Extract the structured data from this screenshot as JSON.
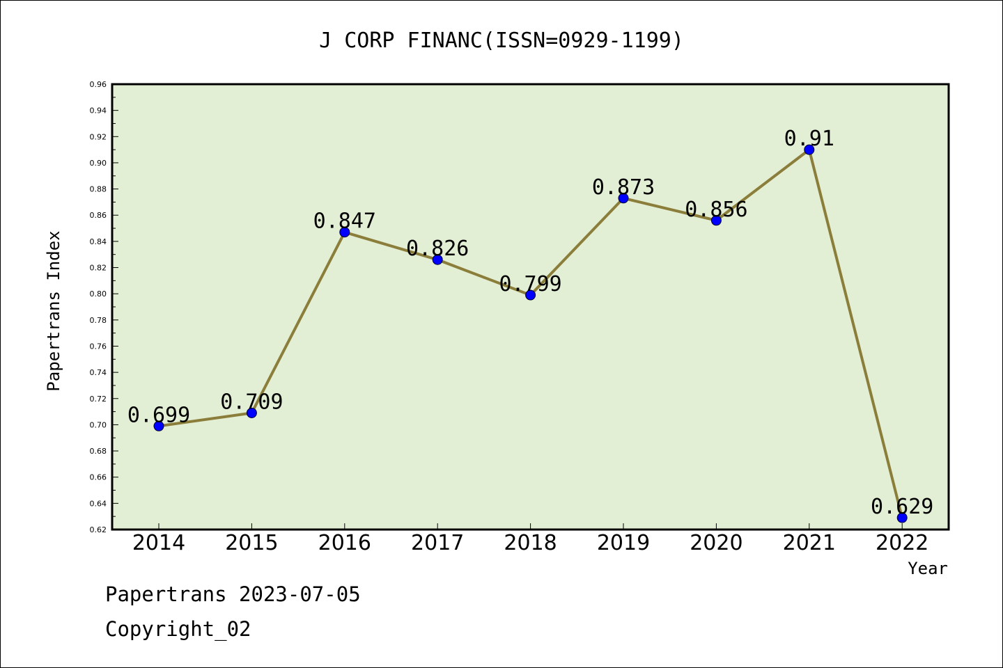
{
  "chart_data": {
    "type": "line",
    "title": "J CORP FINANC(ISSN=0929-1199)",
    "xlabel": "Year",
    "ylabel": "Papertrans Index",
    "categories": [
      "2014",
      "2015",
      "2016",
      "2017",
      "2018",
      "2019",
      "2020",
      "2021",
      "2022"
    ],
    "series": [
      {
        "values": [
          0.699,
          0.709,
          0.847,
          0.826,
          0.799,
          0.873,
          0.856,
          0.91,
          0.629
        ],
        "labels": [
          "0.699",
          "0.709",
          "0.847",
          "0.826",
          "0.799",
          "0.873",
          "0.856",
          "0.91",
          "0.629"
        ]
      }
    ],
    "ylim": [
      0.62,
      0.96
    ],
    "yticks": [
      "0.62",
      "0.64",
      "0.66",
      "0.68",
      "0.70",
      "0.72",
      "0.74",
      "0.76",
      "0.78",
      "0.80",
      "0.82",
      "0.84",
      "0.86",
      "0.88",
      "0.90",
      "0.92",
      "0.94",
      "0.96"
    ],
    "grid": false,
    "colors": {
      "plot_bg": "#e2efd4",
      "line": "#8b7d3a",
      "marker": "#0000ff"
    }
  },
  "footer": {
    "line1": "Papertrans 2023-07-05",
    "line2": "Copyright_02"
  }
}
